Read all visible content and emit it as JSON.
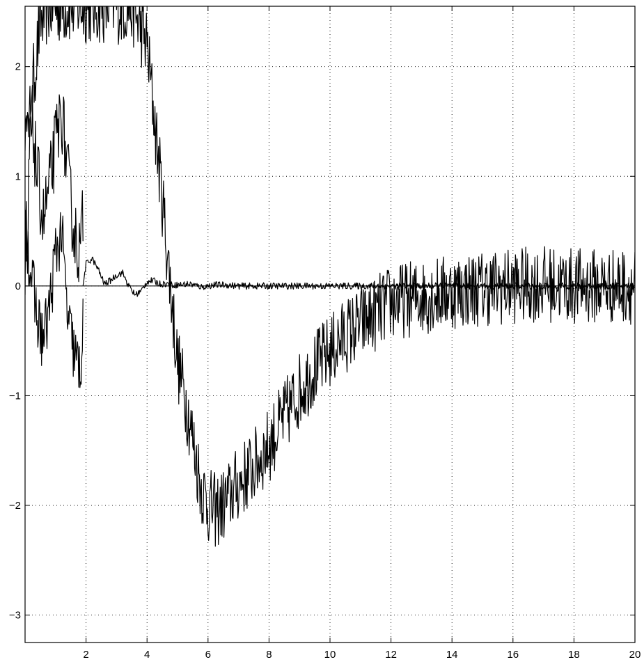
{
  "chart_data": {
    "type": "line",
    "title": "",
    "xlabel": "",
    "ylabel": "",
    "xlim": [
      0,
      20
    ],
    "ylim": [
      -3.25,
      2.55
    ],
    "xticks": [
      2,
      4,
      6,
      8,
      10,
      12,
      14,
      16,
      18,
      20
    ],
    "yticks": [
      -3,
      -2,
      -1,
      0,
      1,
      2
    ],
    "xtick_labels": [
      "2",
      "4",
      "6",
      "8",
      "10",
      "12",
      "14",
      "16",
      "18",
      "20"
    ],
    "ytick_labels": [
      "−3",
      "−2",
      "−1",
      "0",
      "1",
      "2"
    ],
    "grid": true,
    "line_color": "#000000",
    "series": [
      {
        "x": [
          0,
          0.25,
          0.5,
          0.75,
          1,
          1.25,
          1.5,
          1.75,
          2,
          2.5,
          3,
          3.5,
          4,
          4.5,
          5,
          5.25,
          5.5,
          5.75,
          6,
          6.25,
          6.5,
          6.75,
          7,
          7.5,
          8,
          8.5,
          9,
          9.5,
          10,
          10.5,
          11,
          11.5,
          12,
          13,
          14,
          15,
          16,
          17,
          18,
          19,
          20
        ],
        "values": [
          0.2,
          1.8,
          2.4,
          2.55,
          2.55,
          2.55,
          2.55,
          2.55,
          2.55,
          2.55,
          2.55,
          2.55,
          2.2,
          0.8,
          -0.7,
          -1.0,
          -1.4,
          -1.8,
          -2.0,
          -2.05,
          -2.0,
          -1.9,
          -1.8,
          -1.65,
          -1.45,
          -1.2,
          -0.95,
          -0.75,
          -0.6,
          -0.45,
          -0.35,
          -0.25,
          -0.15,
          -0.1,
          -0.05,
          -0.02,
          0.0,
          0.02,
          0.0,
          0.0,
          0.0
        ],
        "noise": 0.35
      },
      {
        "x": [
          0,
          0.2,
          0.4,
          0.6,
          0.8,
          1.0,
          1.2,
          1.4,
          1.6,
          1.8,
          1.9
        ],
        "values": [
          1.2,
          1.6,
          1.0,
          0.6,
          0.9,
          1.3,
          1.6,
          1.0,
          0.5,
          0.3,
          0.6
        ],
        "noise": 0.35
      },
      {
        "x": [
          0,
          0.2,
          0.4,
          0.6,
          0.8,
          1.0,
          1.2,
          1.4,
          1.6,
          1.8,
          1.9
        ],
        "values": [
          0.6,
          0.1,
          -0.3,
          -0.5,
          -0.2,
          0.3,
          0.5,
          -0.3,
          -0.6,
          -0.8,
          -0.4
        ],
        "noise": 0.3
      },
      {
        "x": [
          1.9,
          2.0,
          2.2,
          2.4,
          2.6,
          2.8,
          3.0,
          3.2,
          3.4,
          3.6,
          3.8,
          4.0,
          4.2,
          4.4,
          4.6,
          4.8,
          5.0,
          5.4,
          5.8,
          6.2,
          6.6,
          7.0,
          8.0,
          9.0,
          10,
          12,
          14,
          16,
          18,
          20
        ],
        "values": [
          0.0,
          0.2,
          0.25,
          0.15,
          0.02,
          0.05,
          0.1,
          0.12,
          0.0,
          -0.08,
          -0.05,
          0.04,
          0.05,
          0.02,
          0.02,
          0.01,
          0.01,
          0.02,
          -0.01,
          0.01,
          0.01,
          0.0,
          0.0,
          0.0,
          0.0,
          0.0,
          0.0,
          0.0,
          0.0,
          0.0
        ],
        "noise": 0.03
      }
    ]
  }
}
